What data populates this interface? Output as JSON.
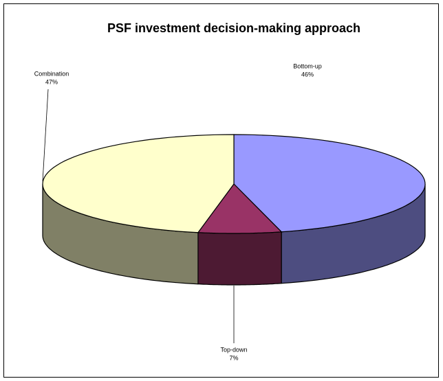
{
  "chart_data": {
    "type": "pie",
    "title": "PSF investment decision-making approach",
    "categories": [
      "Bottom-up",
      "Top-down",
      "Combination"
    ],
    "values": [
      46,
      7,
      47
    ],
    "value_labels": [
      "46%",
      "7%",
      "47%"
    ],
    "colors": [
      "#9999ff",
      "#993366",
      "#ffffcc"
    ]
  }
}
